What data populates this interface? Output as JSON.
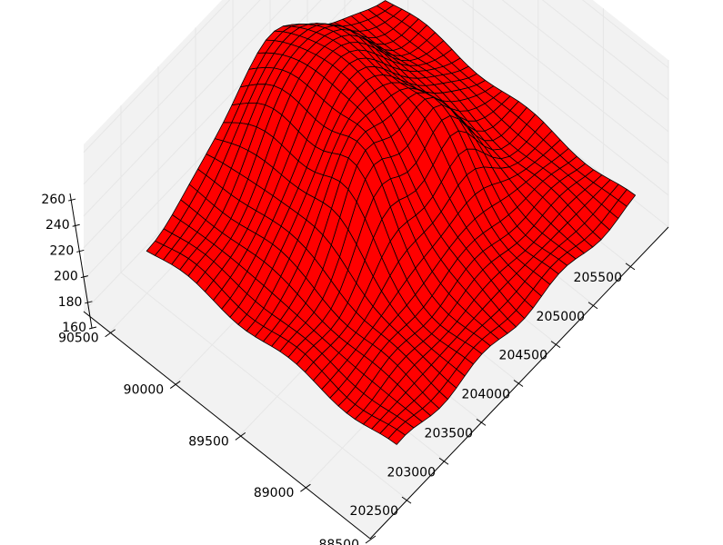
{
  "chart_data": {
    "type": "surface",
    "title": "",
    "xlabel": "",
    "ylabel": "",
    "zlabel": "",
    "surface_color": "#ff0000",
    "edge_color": "#000000",
    "pane_color": "#f2f2f2",
    "grid": true,
    "xlim": [
      202000,
      206000
    ],
    "ylim": [
      88500,
      90700
    ],
    "zlim": [
      160,
      265
    ],
    "x_ticks": [
      202500,
      203000,
      203500,
      204000,
      204500,
      205000,
      205500
    ],
    "x_tick_labels": [
      "202500",
      "203000",
      "203500",
      "204000",
      "204500",
      "205000",
      "205500"
    ],
    "y_ticks": [
      88500,
      89000,
      89500,
      90000,
      90500
    ],
    "y_tick_labels": [
      "88500",
      "89000",
      "89500",
      "90000",
      "90500"
    ],
    "z_ticks": [
      160,
      180,
      200,
      220,
      240,
      260
    ],
    "z_tick_labels": [
      "160",
      "180",
      "200",
      "220",
      "240",
      "260"
    ],
    "terrain": {
      "base_z": 178,
      "peaks": [
        {
          "x": 204250,
          "y": 90150,
          "z_gain": 72
        },
        {
          "x": 203800,
          "y": 89600,
          "z_gain": 30
        },
        {
          "x": 204700,
          "y": 89500,
          "z_gain": 26
        }
      ]
    }
  }
}
